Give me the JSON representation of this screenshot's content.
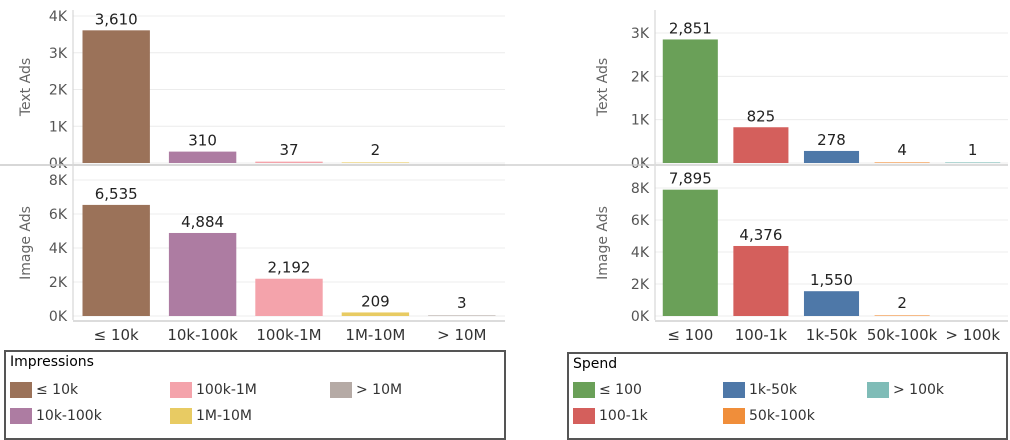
{
  "chart_data": [
    {
      "type": "bar",
      "categories": [
        "≤ 10k",
        "10k-100k",
        "100k-1M",
        "1M-10M",
        "> 10M"
      ],
      "colors": [
        "#9b7259",
        "#ad7ca2",
        "#f4a3ab",
        "#e8cb63",
        "#b5aaa5"
      ],
      "panels": [
        {
          "ylabel": "Text Ads",
          "values": [
            3610,
            310,
            37,
            2,
            null
          ],
          "labels": [
            "3,610",
            "310",
            "37",
            "2",
            ""
          ],
          "ylim": [
            0,
            4300
          ],
          "ticks": [
            0,
            1000,
            2000,
            3000,
            4000
          ],
          "tick_labels": [
            "0K",
            "1K",
            "2K",
            "3K",
            "4K"
          ]
        },
        {
          "ylabel": "Image Ads",
          "values": [
            6535,
            4884,
            2192,
            209,
            3
          ],
          "labels": [
            "6,535",
            "4,884",
            "2,192",
            "209",
            "3"
          ],
          "ylim": [
            0,
            8000
          ],
          "ticks": [
            0,
            2000,
            4000,
            6000,
            8000
          ],
          "tick_labels": [
            "0K",
            "2K",
            "4K",
            "6K",
            "8K"
          ]
        }
      ],
      "legend": {
        "title": "Impressions",
        "items": [
          "≤ 10k",
          "100k-1M",
          "> 10M",
          "10k-100k",
          "1M-10M"
        ],
        "colors": [
          "#9b7259",
          "#f4a3ab",
          "#b5aaa5",
          "#ad7ca2",
          "#e8cb63"
        ]
      }
    },
    {
      "type": "bar",
      "categories": [
        "≤ 100",
        "100-1k",
        "1k-50k",
        "50k-100k",
        "> 100k"
      ],
      "colors": [
        "#6aa058",
        "#d45f5c",
        "#4e78a8",
        "#f08e3a",
        "#7fbcb7"
      ],
      "panels": [
        {
          "ylabel": "Text Ads",
          "values": [
            2851,
            825,
            278,
            4,
            1
          ],
          "labels": [
            "2,851",
            "825",
            "278",
            "4",
            "1"
          ],
          "ylim": [
            0,
            3200
          ],
          "ticks": [
            0,
            1000,
            2000,
            3000
          ],
          "tick_labels": [
            "0K",
            "1K",
            "2K",
            "3K"
          ]
        },
        {
          "ylabel": "Image Ads",
          "values": [
            7895,
            4376,
            1550,
            2,
            null
          ],
          "labels": [
            "7,895",
            "4,376",
            "1,550",
            "2",
            ""
          ],
          "ylim": [
            0,
            9000
          ],
          "ticks": [
            0,
            2000,
            4000,
            6000,
            8000
          ],
          "tick_labels": [
            "0K",
            "2K",
            "4K",
            "6K",
            "8K"
          ]
        }
      ],
      "legend": {
        "title": "Spend",
        "items": [
          "≤ 100",
          "1k-50k",
          "> 100k",
          "100-1k",
          "50k-100k"
        ],
        "colors": [
          "#6aa058",
          "#4e78a8",
          "#7fbcb7",
          "#d45f5c",
          "#f08e3a"
        ]
      }
    }
  ]
}
